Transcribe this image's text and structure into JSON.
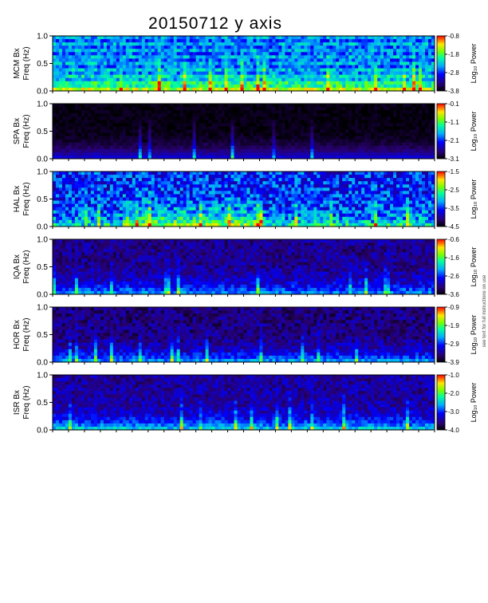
{
  "title": "20150712 y axis",
  "side_note": "see text for full instructions on use",
  "chart_data": {
    "type": "heatmap",
    "title": "20150712 y axis",
    "xlabel": "",
    "ylabel": "Freq (Hz)",
    "ylim": [
      0.0,
      1.0
    ],
    "yticks": [
      "0.0",
      "0.5",
      "1.0"
    ],
    "colorbar_label": "Log₁₀ Power",
    "panels": [
      {
        "station": "MCM Bx",
        "ylabel": "Freq (Hz)",
        "colorbar_ticks": [
          "-0.8",
          "-1.8",
          "-2.8",
          "-3.8"
        ],
        "vmin": -3.8,
        "vmax": -0.8
      },
      {
        "station": "SPA Bx",
        "ylabel": "Freq (Hz)",
        "colorbar_ticks": [
          "-0.1",
          "-1.1",
          "-2.1",
          "-3.1"
        ],
        "vmin": -3.1,
        "vmax": -0.1
      },
      {
        "station": "HAL Bx",
        "ylabel": "Freq (Hz)",
        "colorbar_ticks": [
          "-1.5",
          "-2.5",
          "-3.5",
          "-4.5"
        ],
        "vmin": -4.5,
        "vmax": -1.5
      },
      {
        "station": "IQA Bx",
        "ylabel": "Freq (Hz)",
        "colorbar_ticks": [
          "-0.6",
          "-1.6",
          "-2.6",
          "-3.6"
        ],
        "vmin": -3.6,
        "vmax": -0.6
      },
      {
        "station": "HOR Bx",
        "ylabel": "Freq (Hz)",
        "colorbar_ticks": [
          "-0.9",
          "-1.9",
          "-2.9",
          "-3.9"
        ],
        "vmin": -3.9,
        "vmax": -0.9
      },
      {
        "station": "ISR Bx",
        "ylabel": "Freq (Hz)",
        "colorbar_ticks": [
          "-1.0",
          "-2.0",
          "-3.0",
          "-4.0"
        ],
        "vmin": -4.0,
        "vmax": -1.0
      }
    ]
  }
}
